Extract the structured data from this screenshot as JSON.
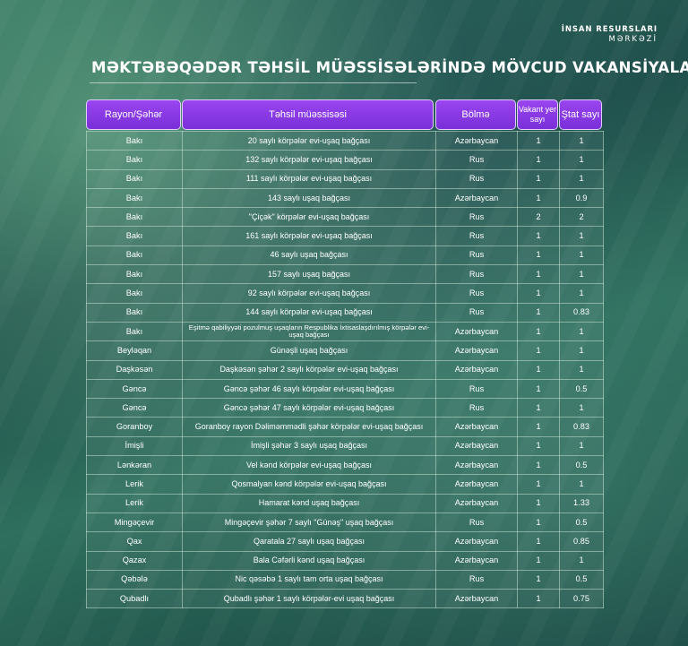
{
  "brand": {
    "line1": "İNSAN RESURSLARI",
    "line2": "MƏRKƏZİ"
  },
  "title": "MƏKTƏBƏQƏDƏR TƏHSİL MÜƏSSİSƏLƏRİNDƏ MÖVCUD VAKANSİYALAR",
  "headers": {
    "region": "Rayon/Şəhər",
    "institution": "Təhsil müəssisəsi",
    "section": "Bölmə",
    "vacant": "Vakant yer sayı",
    "staff": "Ştat sayı"
  },
  "rows": [
    {
      "region": "Bakı",
      "institution": "20 saylı körpələr evi-uşaq bağçası",
      "section": "Azərbaycan",
      "vacant": "1",
      "staff": "1"
    },
    {
      "region": "Bakı",
      "institution": "132 saylı körpələr evi-uşaq bağçası",
      "section": "Rus",
      "vacant": "1",
      "staff": "1"
    },
    {
      "region": "Bakı",
      "institution": "111 saylı körpələr evi-uşaq bağçası",
      "section": "Rus",
      "vacant": "1",
      "staff": "1"
    },
    {
      "region": "Bakı",
      "institution": "143 saylı uşaq bağçası",
      "section": "Azərbaycan",
      "vacant": "1",
      "staff": "0.9"
    },
    {
      "region": "Bakı",
      "institution": "\"Çiçək\" körpələr evi-uşaq bağçası",
      "section": "Rus",
      "vacant": "2",
      "staff": "2"
    },
    {
      "region": "Bakı",
      "institution": "161 saylı körpələr evi-uşaq bağçası",
      "section": "Rus",
      "vacant": "1",
      "staff": "1"
    },
    {
      "region": "Bakı",
      "institution": "46 saylı uşaq bağçası",
      "section": "Rus",
      "vacant": "1",
      "staff": "1"
    },
    {
      "region": "Bakı",
      "institution": "157 saylı uşaq bağçası",
      "section": "Rus",
      "vacant": "1",
      "staff": "1"
    },
    {
      "region": "Bakı",
      "institution": "92 saylı körpələr evi-uşaq bağçası",
      "section": "Rus",
      "vacant": "1",
      "staff": "1"
    },
    {
      "region": "Bakı",
      "institution": "144 saylı körpələr evi-uşaq bağçası",
      "section": "Rus",
      "vacant": "1",
      "staff": "0.83"
    },
    {
      "region": "Bakı",
      "institution": "Eşitmə qabiliyyəti pozulmuş uşaqların Respublika İxtisaslaşdırılmış körpələr evi-uşaq bağçası",
      "section": "Azərbaycan",
      "vacant": "1",
      "staff": "1"
    },
    {
      "region": "Beyləqan",
      "institution": "Günəşli uşaq bağçası",
      "section": "Azərbaycan",
      "vacant": "1",
      "staff": "1"
    },
    {
      "region": "Daşkəsən",
      "institution": "Daşkəsən şəhər 2 saylı körpələr evi-uşaq bağçası",
      "section": "Azərbaycan",
      "vacant": "1",
      "staff": "1"
    },
    {
      "region": "Gəncə",
      "institution": "Gəncə şəhər 46 saylı körpələr evi-uşaq bağçası",
      "section": "Rus",
      "vacant": "1",
      "staff": "0.5"
    },
    {
      "region": "Gəncə",
      "institution": "Gəncə şəhər 47 saylı körpələr evi-uşaq bağçası",
      "section": "Rus",
      "vacant": "1",
      "staff": "1"
    },
    {
      "region": "Goranboy",
      "institution": "Goranboy rayon Dəliməmmədli şəhər körpələr evi-uşaq bağçası",
      "section": "Azərbaycan",
      "vacant": "1",
      "staff": "0.83"
    },
    {
      "region": "İmişli",
      "institution": "İmişli şəhər 3 saylı uşaq bağçası",
      "section": "Azərbaycan",
      "vacant": "1",
      "staff": "1"
    },
    {
      "region": "Lənkəran",
      "institution": "Vel kənd körpələr evi-uşaq bağçası",
      "section": "Azərbaycan",
      "vacant": "1",
      "staff": "0.5"
    },
    {
      "region": "Lerik",
      "institution": "Qosmalyan kənd körpələr evi-uşaq bağçası",
      "section": "Azərbaycan",
      "vacant": "1",
      "staff": "1"
    },
    {
      "region": "Lerik",
      "institution": "Hamarat kənd uşaq bağçası",
      "section": "Azərbaycan",
      "vacant": "1",
      "staff": "1.33"
    },
    {
      "region": "Mingəçevir",
      "institution": "Mingəçevir şəhər 7 saylı \"Günəş\" uşaq bağçası",
      "section": "Rus",
      "vacant": "1",
      "staff": "0.5"
    },
    {
      "region": "Qax",
      "institution": "Qaratala 27 saylı uşaq bağçası",
      "section": "Azərbaycan",
      "vacant": "1",
      "staff": "0.85"
    },
    {
      "region": "Qazax",
      "institution": "Bala Cəfərli kənd uşaq bağçası",
      "section": "Azərbaycan",
      "vacant": "1",
      "staff": "1"
    },
    {
      "region": "Qəbələ",
      "institution": "Nic qəsəbə 1 saylı tam orta uşaq bağçası",
      "section": "Rus",
      "vacant": "1",
      "staff": "0.5"
    },
    {
      "region": "Qubadlı",
      "institution": "Qubadlı şəhər 1 saylı körpələr-evi uşaq bağçası",
      "section": "Azərbaycan",
      "vacant": "1",
      "staff": "0.75"
    }
  ]
}
